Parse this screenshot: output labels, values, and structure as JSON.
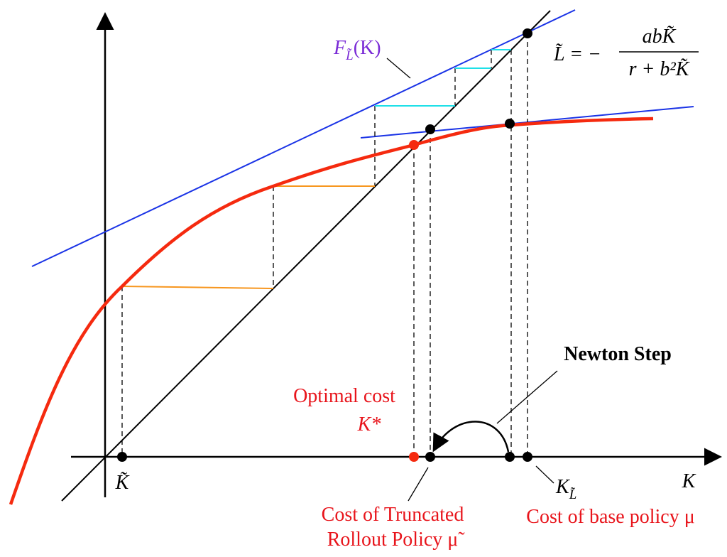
{
  "function_label": {
    "name": "F",
    "subscript": "L̃",
    "argument": "(K)"
  },
  "formula": {
    "lhs": "L̃ = −",
    "numerator": "abK̃",
    "denominator": "r + b²K̃"
  },
  "newton_step": "Newton Step",
  "optimal_cost": {
    "line1": "Optimal cost",
    "line2": "K*"
  },
  "axis_labels": {
    "k_tilde": "K̃",
    "k": "K",
    "k_l": {
      "name": "K",
      "subscript": "L̃"
    }
  },
  "truncated_rollout": {
    "line1": "Cost of Truncated",
    "line2": "Rollout Policy μ̃"
  },
  "base_policy": "Cost of base policy μ"
}
